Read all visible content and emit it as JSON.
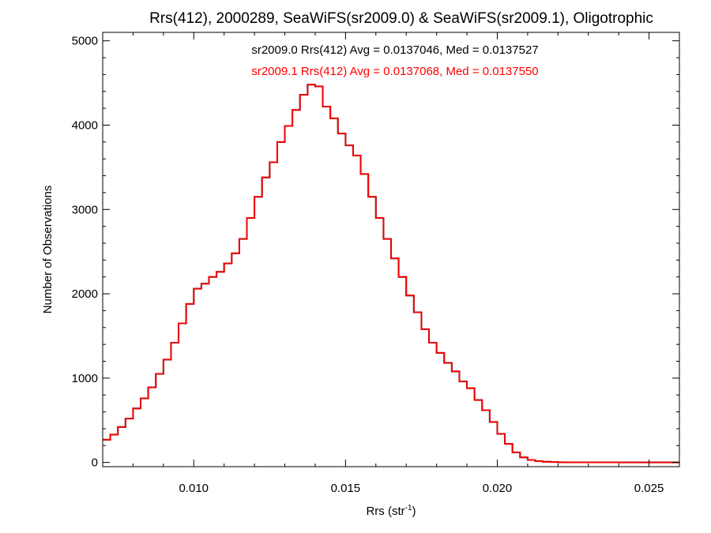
{
  "chart_data": {
    "type": "line",
    "step": true,
    "title": "Rrs(412), 2000289, SeaWiFS(sr2009.0) & SeaWiFS(sr2009.1), Oligotrophic",
    "xlabel": {
      "base": "Rrs (str",
      "sup": "-1",
      "close": ")"
    },
    "ylabel": "Number of Observations",
    "xlim": [
      0.007,
      0.026
    ],
    "ylim": [
      -50,
      5100
    ],
    "xticks": [
      0.01,
      0.015,
      0.02,
      0.025
    ],
    "xtick_labels": [
      "0.010",
      "0.015",
      "0.020",
      "0.025"
    ],
    "yticks": [
      0,
      1000,
      2000,
      3000,
      4000,
      5000
    ],
    "ytick_labels": [
      "0",
      "1000",
      "2000",
      "3000",
      "4000",
      "5000"
    ],
    "grid": false,
    "annotations": [
      {
        "text": "sr2009.0 Rrs(412) Avg = 0.0137046, Med = 0.0137527",
        "color": "#000000"
      },
      {
        "text": "sr2009.1 Rrs(412) Avg = 0.0137068, Med = 0.0137550",
        "color": "#ff0000"
      }
    ],
    "x": [
      0.007,
      0.00725,
      0.0075,
      0.00775,
      0.008,
      0.00825,
      0.0085,
      0.00875,
      0.009,
      0.00925,
      0.0095,
      0.00975,
      0.01,
      0.01025,
      0.0105,
      0.01075,
      0.011,
      0.01125,
      0.0115,
      0.01175,
      0.012,
      0.01225,
      0.0125,
      0.01275,
      0.013,
      0.01325,
      0.0135,
      0.01375,
      0.014,
      0.01425,
      0.0145,
      0.01475,
      0.015,
      0.01525,
      0.0155,
      0.01575,
      0.016,
      0.01625,
      0.0165,
      0.01675,
      0.017,
      0.01725,
      0.0175,
      0.01775,
      0.018,
      0.01825,
      0.0185,
      0.01875,
      0.019,
      0.01925,
      0.0195,
      0.01975,
      0.02,
      0.02025,
      0.0205,
      0.02075,
      0.021,
      0.02125,
      0.0215,
      0.02175,
      0.022,
      0.02225,
      0.0225,
      0.023,
      0.024,
      0.025,
      0.026
    ],
    "series": [
      {
        "name": "sr2009.0",
        "color": "#000000",
        "values": [
          270,
          330,
          420,
          520,
          640,
          760,
          890,
          1050,
          1220,
          1420,
          1650,
          1880,
          2060,
          2120,
          2200,
          2260,
          2360,
          2480,
          2650,
          2900,
          3150,
          3380,
          3560,
          3800,
          3990,
          4180,
          4360,
          4480,
          4460,
          4220,
          4080,
          3900,
          3760,
          3640,
          3420,
          3150,
          2900,
          2650,
          2420,
          2200,
          1980,
          1780,
          1580,
          1420,
          1300,
          1180,
          1080,
          960,
          880,
          740,
          620,
          480,
          340,
          220,
          120,
          60,
          30,
          15,
          8,
          5,
          3,
          2,
          1,
          1,
          0,
          0,
          0
        ]
      },
      {
        "name": "sr2009.1",
        "color": "#ff0000",
        "values": [
          270,
          330,
          420,
          520,
          640,
          760,
          890,
          1050,
          1220,
          1420,
          1650,
          1880,
          2060,
          2120,
          2200,
          2260,
          2360,
          2480,
          2650,
          2900,
          3150,
          3380,
          3560,
          3800,
          3990,
          4180,
          4360,
          4480,
          4460,
          4220,
          4080,
          3900,
          3760,
          3640,
          3420,
          3150,
          2900,
          2650,
          2420,
          2200,
          1980,
          1780,
          1580,
          1420,
          1300,
          1180,
          1080,
          960,
          880,
          740,
          620,
          480,
          340,
          220,
          120,
          60,
          30,
          15,
          8,
          5,
          3,
          2,
          1,
          1,
          0,
          0,
          0
        ]
      }
    ]
  }
}
